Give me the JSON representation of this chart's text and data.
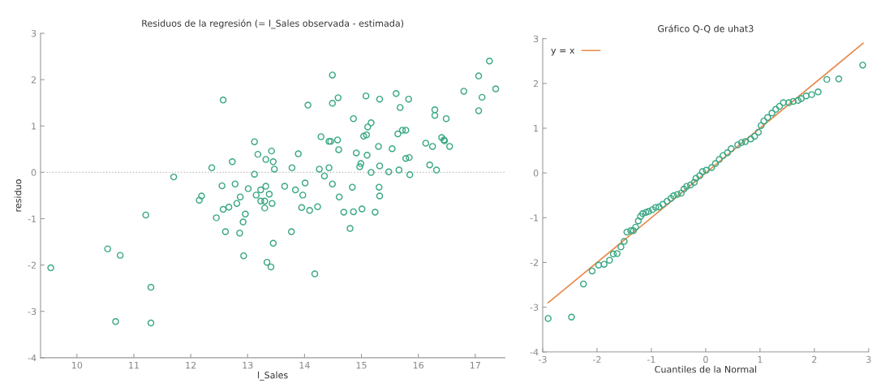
{
  "chart_data": [
    {
      "type": "scatter",
      "title": "Residuos de la regresión (= l_Sales observada - estimada)",
      "xlabel": "l_Sales",
      "ylabel": "residuo",
      "series": [
        {
          "color": "#3aa883",
          "marker": "circle",
          "x": [
            9.54,
            10.54,
            10.76,
            10.68,
            11.21,
            11.3,
            11.3,
            11.7,
            12.37,
            12.15,
            12.19,
            12.57,
            12.55,
            12.45,
            12.57,
            12.67,
            12.61,
            12.73,
            12.78,
            12.81,
            12.87,
            12.96,
            12.92,
            12.86,
            12.93,
            13.01,
            13.12,
            13.18,
            13.12,
            13.15,
            13.42,
            13.32,
            13.45,
            13.47,
            13.32,
            13.38,
            13.43,
            13.3,
            13.23,
            13.3,
            13.23,
            17.25,
            17.06,
            17.36,
            16.8,
            17.12,
            17.06,
            14.49,
            14.06,
            14.49,
            14.59,
            15.08,
            15.32,
            15.61,
            15.83,
            15.68,
            16.29,
            16.29,
            16.49,
            14.86,
            15.17,
            15.11,
            15.09,
            15.04,
            14.29,
            14.43,
            14.46,
            14.58,
            14.6,
            15.64,
            15.72,
            15.78,
            16.13,
            16.25,
            16.41,
            16.45,
            16.46,
            16.55,
            15.3,
            15.54,
            14.91,
            15.1,
            15.78,
            15.84,
            15.32,
            14.99,
            14.97,
            15.17,
            15.48,
            15.66,
            15.85,
            16.2,
            16.32,
            13.89,
            13.78,
            14.26,
            14.43,
            14.35,
            14.01,
            14.49,
            13.65,
            13.84,
            13.97,
            14.84,
            15.31,
            15.32,
            14.61,
            13.95,
            14.09,
            14.23,
            14.69,
            14.86,
            15.01,
            15.24,
            14.8,
            13.77,
            13.45,
            13.34,
            13.41,
            14.18
          ],
          "values": [
            -2.06,
            -1.65,
            -1.79,
            -3.22,
            -0.92,
            -2.48,
            -3.25,
            -0.1,
            0.1,
            -0.6,
            -0.51,
            1.56,
            -0.29,
            -0.98,
            -0.8,
            -0.75,
            -1.28,
            0.23,
            -0.25,
            -0.67,
            -0.53,
            -0.9,
            -1.07,
            -1.31,
            -1.8,
            -0.35,
            0.66,
            0.39,
            -0.04,
            -0.49,
            0.46,
            0.28,
            0.23,
            0.07,
            -0.3,
            -0.47,
            -0.67,
            -0.62,
            -0.62,
            -0.77,
            -0.38,
            2.4,
            2.08,
            1.8,
            1.75,
            1.62,
            1.33,
            2.1,
            1.45,
            1.49,
            1.61,
            1.65,
            1.58,
            1.7,
            1.58,
            1.4,
            1.35,
            1.23,
            1.16,
            1.16,
            1.07,
            0.98,
            0.81,
            0.78,
            0.77,
            0.67,
            0.67,
            0.7,
            0.49,
            0.83,
            0.91,
            0.91,
            0.63,
            0.56,
            0.75,
            0.7,
            0.68,
            0.56,
            0.56,
            0.51,
            0.42,
            0.37,
            0.3,
            0.32,
            0.14,
            0.19,
            0.12,
            0.0,
            0.01,
            0.05,
            -0.05,
            0.16,
            0.05,
            0.4,
            0.1,
            0.07,
            0.1,
            -0.08,
            -0.23,
            -0.25,
            -0.3,
            -0.38,
            -0.49,
            -0.32,
            -0.32,
            -0.51,
            -0.53,
            -0.76,
            -0.82,
            -0.74,
            -0.86,
            -0.85,
            -0.79,
            -0.86,
            -1.21,
            -1.28,
            -1.53,
            -1.94,
            -2.04,
            -2.19
          ]
        }
      ],
      "xlim": [
        9.36,
        17.52
      ],
      "ylim": [
        -4,
        3
      ],
      "xticks": [
        10,
        11,
        12,
        13,
        14,
        15,
        16,
        17
      ],
      "yticks": [
        -4,
        -3,
        -2,
        -1,
        0,
        1,
        2,
        3
      ],
      "ref_lines": [
        {
          "axis": "y",
          "value": 0,
          "color": "#bbbbbb",
          "line_style": "dotted"
        }
      ]
    },
    {
      "type": "scatter",
      "title": "Gráfico Q-Q de uhat3",
      "xlabel": "Cuantiles de la Normal",
      "legend": "top left",
      "series": [
        {
          "color": "#3aa883",
          "marker": "circle",
          "x": [
            -2.9,
            -2.47,
            -2.25,
            -2.09,
            -1.97,
            -1.87,
            -1.77,
            -1.7,
            -1.63,
            -1.56,
            -1.5,
            -1.45,
            -1.38,
            -1.33,
            -1.29,
            -1.24,
            -1.2,
            -1.16,
            -1.1,
            -1.05,
            -0.98,
            -0.92,
            -0.86,
            -0.79,
            -0.71,
            -0.64,
            -0.59,
            -0.52,
            -0.45,
            -0.4,
            -0.35,
            -0.28,
            -0.21,
            -0.18,
            -0.11,
            -0.06,
            0.01,
            0.11,
            0.18,
            0.25,
            0.32,
            0.4,
            0.47,
            0.59,
            0.66,
            0.73,
            0.83,
            0.9,
            0.97,
            1.02,
            1.07,
            1.14,
            1.22,
            1.29,
            1.36,
            1.43,
            1.53,
            1.61,
            1.7,
            1.76,
            1.85,
            1.95,
            2.07,
            2.23,
            2.45,
            2.89
          ],
          "values": [
            -3.25,
            -3.22,
            -2.48,
            -2.19,
            -2.06,
            -2.04,
            -1.95,
            -1.81,
            -1.8,
            -1.65,
            -1.53,
            -1.32,
            -1.29,
            -1.29,
            -1.21,
            -1.07,
            -0.97,
            -0.91,
            -0.88,
            -0.86,
            -0.82,
            -0.77,
            -0.76,
            -0.7,
            -0.63,
            -0.57,
            -0.51,
            -0.48,
            -0.45,
            -0.36,
            -0.3,
            -0.27,
            -0.21,
            -0.12,
            -0.06,
            0.03,
            0.06,
            0.12,
            0.21,
            0.3,
            0.39,
            0.45,
            0.54,
            0.63,
            0.68,
            0.7,
            0.76,
            0.82,
            0.91,
            1.06,
            1.16,
            1.24,
            1.34,
            1.42,
            1.49,
            1.57,
            1.57,
            1.6,
            1.62,
            1.66,
            1.72,
            1.75,
            1.81,
            2.09,
            2.1,
            2.41
          ]
        },
        {
          "type": "line",
          "name": "y = x",
          "color": "#e8894a",
          "x": [
            -2.9,
            2.9
          ],
          "values": [
            -2.9,
            2.9
          ]
        }
      ],
      "xlim": [
        -3,
        3
      ],
      "ylim": [
        -4,
        3
      ],
      "xticks": [
        -3,
        -2,
        -1,
        0,
        1,
        2,
        3
      ],
      "yticks": [
        -4,
        -3,
        -2,
        -1,
        0,
        1,
        2,
        3
      ]
    }
  ]
}
